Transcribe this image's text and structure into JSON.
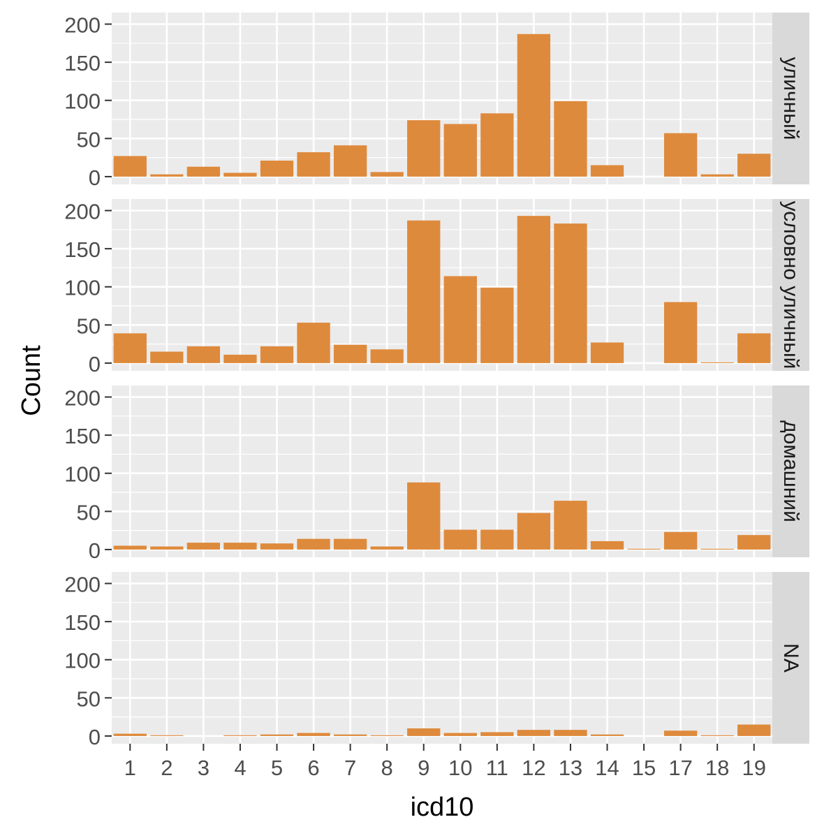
{
  "chart_data": {
    "type": "bar",
    "xlabel": "icd10",
    "ylabel": "Count",
    "ylim": [
      0,
      205
    ],
    "yticks": [
      0,
      50,
      100,
      150,
      200
    ],
    "grid": true,
    "bar_color": "#DE8A3C",
    "panel_bg": "#EBEBEB",
    "strip_bg": "#D9D9D9",
    "categories": [
      "1",
      "2",
      "3",
      "4",
      "5",
      "6",
      "7",
      "8",
      "9",
      "10",
      "11",
      "12",
      "13",
      "14",
      "15",
      "17",
      "18",
      "19"
    ],
    "series": [
      {
        "name": "уличный",
        "values": [
          27,
          3,
          13,
          5,
          21,
          32,
          41,
          6,
          74,
          69,
          83,
          187,
          99,
          15,
          0,
          57,
          3,
          30
        ]
      },
      {
        "name": "условно уличный",
        "values": [
          39,
          15,
          22,
          11,
          22,
          53,
          24,
          18,
          187,
          114,
          99,
          193,
          183,
          27,
          0,
          80,
          1,
          39
        ]
      },
      {
        "name": "домашний",
        "values": [
          5,
          4,
          9,
          9,
          8,
          14,
          14,
          4,
          88,
          26,
          26,
          48,
          64,
          11,
          1,
          23,
          1,
          19
        ]
      },
      {
        "name": "NA",
        "values": [
          3,
          1,
          0,
          1,
          2,
          4,
          2,
          1,
          10,
          4,
          5,
          8,
          8,
          2,
          0,
          7,
          1,
          15
        ]
      }
    ]
  }
}
